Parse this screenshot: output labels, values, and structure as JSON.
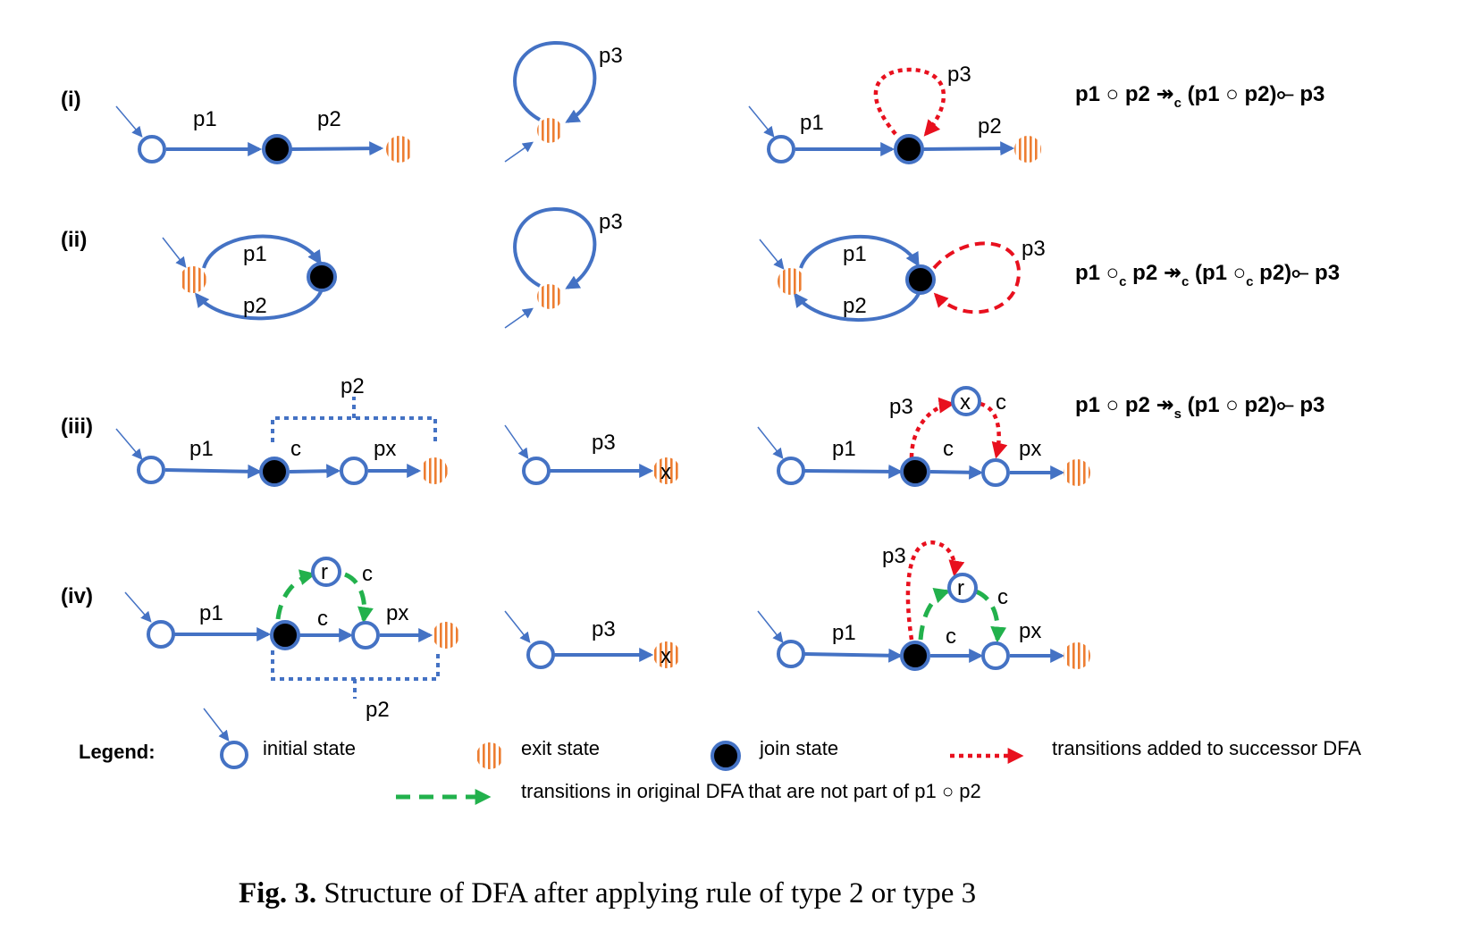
{
  "rows": [
    {
      "label": "(i)",
      "formula": {
        "a": "p1 ○ p2  ↠",
        "sub": "c",
        "b": " (p1 ○ p2)⟜ p3"
      }
    },
    {
      "label": "(ii)",
      "formula": {
        "a": "p1 ○",
        "sub1": "c",
        "b": " p2  ↠",
        "sub2": "c",
        "c": " (p1 ○",
        "sub3": "c",
        "d": " p2)⟜  p3"
      }
    },
    {
      "label": "(iii)",
      "formula": {
        "a": "p1 ○ p2  ↠",
        "sub": "s",
        "b": "  (p1 ○ p2)⟜ p3"
      }
    },
    {
      "label": "(iv)"
    }
  ],
  "labels": {
    "p1": "p1",
    "p2": "p2",
    "p3": "p3",
    "px": "px",
    "c": "c",
    "x": "x",
    "r": "r"
  },
  "legend": {
    "title": "Legend:",
    "initial": "initial state",
    "exit": "exit state",
    "join": "join state",
    "added": "transitions added to successor DFA",
    "original": "transitions in original DFA that are not part of p1 ○ p2"
  },
  "caption": {
    "bold": "Fig. 3.",
    "text": " Structure of DFA after applying rule of type 2 or type 3"
  },
  "colors": {
    "state_blue": "#4472C4",
    "added_red": "#E8101E",
    "original_green": "#22B14C",
    "exit_orange": "#ED7D31"
  }
}
